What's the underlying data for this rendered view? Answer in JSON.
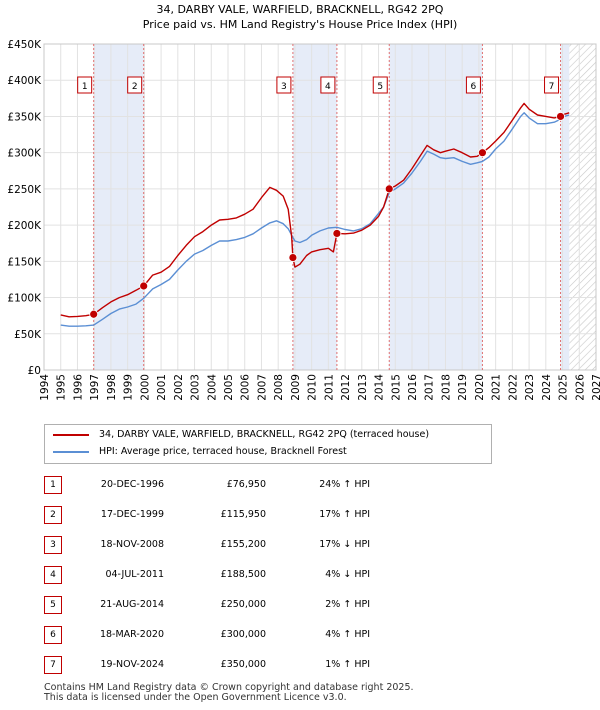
{
  "chart_data": {
    "type": "line",
    "title": "34, DARBY VALE, WARFIELD, BRACKNELL, RG42 2PQ",
    "subtitle": "Price paid vs. HM Land Registry's House Price Index (HPI)",
    "xlim": [
      1994,
      2027
    ],
    "ylim": [
      0,
      450000
    ],
    "x_ticks": [
      "1994",
      "1995",
      "1996",
      "1997",
      "1998",
      "1999",
      "2000",
      "2001",
      "2002",
      "2003",
      "2004",
      "2005",
      "2006",
      "2007",
      "2008",
      "2009",
      "2010",
      "2011",
      "2012",
      "2013",
      "2014",
      "2015",
      "2016",
      "2017",
      "2018",
      "2019",
      "2020",
      "2021",
      "2022",
      "2023",
      "2024",
      "2025",
      "2026",
      "2027"
    ],
    "y_ticks": [
      {
        "value": 0,
        "label": "£0"
      },
      {
        "value": 50000,
        "label": "£50K"
      },
      {
        "value": 100000,
        "label": "£100K"
      },
      {
        "value": 150000,
        "label": "£150K"
      },
      {
        "value": 200000,
        "label": "£200K"
      },
      {
        "value": 250000,
        "label": "£250K"
      },
      {
        "value": 300000,
        "label": "£300K"
      },
      {
        "value": 350000,
        "label": "£350K"
      },
      {
        "value": 400000,
        "label": "£400K"
      },
      {
        "value": 450000,
        "label": "£450K"
      }
    ],
    "grid": true,
    "data_end": 2025.4,
    "shaded_spans": [
      [
        1996.97,
        1999.96
      ],
      [
        2008.88,
        2011.51
      ],
      [
        2014.64,
        2020.21
      ],
      [
        2024.88,
        2025.4
      ]
    ],
    "series": [
      {
        "name": "34, DARBY VALE, WARFIELD, BRACKNELL, RG42 2PQ (terraced house)",
        "color": "#c00000",
        "points": [
          [
            1995.0,
            76000
          ],
          [
            1995.5,
            73500
          ],
          [
            1996.0,
            74000
          ],
          [
            1996.5,
            75000
          ],
          [
            1996.97,
            76950
          ],
          [
            1997.5,
            86000
          ],
          [
            1998.0,
            94000
          ],
          [
            1998.5,
            100000
          ],
          [
            1999.0,
            104000
          ],
          [
            1999.5,
            110000
          ],
          [
            1999.96,
            115950
          ],
          [
            2000.5,
            131000
          ],
          [
            2001.0,
            135000
          ],
          [
            2001.5,
            143000
          ],
          [
            2002.0,
            158000
          ],
          [
            2002.5,
            172000
          ],
          [
            2003.0,
            184000
          ],
          [
            2003.5,
            191000
          ],
          [
            2004.0,
            200000
          ],
          [
            2004.5,
            207000
          ],
          [
            2005.0,
            208000
          ],
          [
            2005.5,
            210000
          ],
          [
            2006.0,
            215000
          ],
          [
            2006.5,
            222000
          ],
          [
            2007.0,
            238000
          ],
          [
            2007.5,
            252000
          ],
          [
            2007.9,
            248000
          ],
          [
            2008.3,
            240000
          ],
          [
            2008.6,
            222000
          ],
          [
            2008.8,
            185000
          ],
          [
            2008.88,
            155200
          ],
          [
            2009.0,
            142000
          ],
          [
            2009.3,
            146000
          ],
          [
            2009.7,
            158000
          ],
          [
            2010.0,
            163000
          ],
          [
            2010.5,
            166000
          ],
          [
            2011.0,
            168000
          ],
          [
            2011.3,
            163000
          ],
          [
            2011.51,
            188500
          ],
          [
            2012.0,
            188000
          ],
          [
            2012.5,
            189000
          ],
          [
            2013.0,
            193000
          ],
          [
            2013.5,
            200000
          ],
          [
            2014.0,
            212000
          ],
          [
            2014.3,
            225000
          ],
          [
            2014.64,
            250000
          ],
          [
            2015.0,
            254000
          ],
          [
            2015.5,
            262000
          ],
          [
            2016.0,
            278000
          ],
          [
            2016.5,
            296000
          ],
          [
            2016.9,
            310000
          ],
          [
            2017.3,
            304000
          ],
          [
            2017.7,
            300000
          ],
          [
            2018.0,
            302000
          ],
          [
            2018.5,
            305000
          ],
          [
            2019.0,
            300000
          ],
          [
            2019.5,
            294000
          ],
          [
            2019.9,
            295000
          ],
          [
            2020.21,
            300000
          ],
          [
            2020.6,
            307000
          ],
          [
            2021.0,
            316000
          ],
          [
            2021.5,
            328000
          ],
          [
            2022.0,
            345000
          ],
          [
            2022.5,
            362000
          ],
          [
            2022.7,
            368000
          ],
          [
            2023.0,
            360000
          ],
          [
            2023.5,
            352000
          ],
          [
            2024.0,
            350000
          ],
          [
            2024.5,
            348000
          ],
          [
            2024.88,
            350000
          ],
          [
            2025.1,
            353000
          ],
          [
            2025.4,
            355000
          ]
        ]
      },
      {
        "name": "HPI: Average price, terraced house, Bracknell Forest",
        "color": "#5b8fd4",
        "points": [
          [
            1995.0,
            62000
          ],
          [
            1995.5,
            60500
          ],
          [
            1996.0,
            60500
          ],
          [
            1996.5,
            61000
          ],
          [
            1996.97,
            62000
          ],
          [
            1997.5,
            70000
          ],
          [
            1998.0,
            78000
          ],
          [
            1998.5,
            84000
          ],
          [
            1999.0,
            87000
          ],
          [
            1999.5,
            91000
          ],
          [
            1999.96,
            99000
          ],
          [
            2000.5,
            112000
          ],
          [
            2001.0,
            118000
          ],
          [
            2001.5,
            125000
          ],
          [
            2002.0,
            138000
          ],
          [
            2002.5,
            150000
          ],
          [
            2003.0,
            160000
          ],
          [
            2003.5,
            165000
          ],
          [
            2004.0,
            172000
          ],
          [
            2004.5,
            178000
          ],
          [
            2005.0,
            178000
          ],
          [
            2005.5,
            180000
          ],
          [
            2006.0,
            183000
          ],
          [
            2006.5,
            188000
          ],
          [
            2007.0,
            196000
          ],
          [
            2007.5,
            203000
          ],
          [
            2007.9,
            206000
          ],
          [
            2008.3,
            202000
          ],
          [
            2008.6,
            195000
          ],
          [
            2008.88,
            183000
          ],
          [
            2009.0,
            178000
          ],
          [
            2009.3,
            176000
          ],
          [
            2009.7,
            180000
          ],
          [
            2010.0,
            186000
          ],
          [
            2010.5,
            192000
          ],
          [
            2011.0,
            196000
          ],
          [
            2011.51,
            197000
          ],
          [
            2012.0,
            194000
          ],
          [
            2012.5,
            192000
          ],
          [
            2013.0,
            195000
          ],
          [
            2013.5,
            202000
          ],
          [
            2014.0,
            216000
          ],
          [
            2014.3,
            225000
          ],
          [
            2014.64,
            245000
          ],
          [
            2015.0,
            250000
          ],
          [
            2015.5,
            258000
          ],
          [
            2016.0,
            272000
          ],
          [
            2016.5,
            288000
          ],
          [
            2016.9,
            302000
          ],
          [
            2017.3,
            298000
          ],
          [
            2017.7,
            293000
          ],
          [
            2018.0,
            292000
          ],
          [
            2018.5,
            293000
          ],
          [
            2019.0,
            288000
          ],
          [
            2019.5,
            284000
          ],
          [
            2019.9,
            286000
          ],
          [
            2020.21,
            288000
          ],
          [
            2020.6,
            294000
          ],
          [
            2021.0,
            305000
          ],
          [
            2021.5,
            316000
          ],
          [
            2022.0,
            333000
          ],
          [
            2022.5,
            350000
          ],
          [
            2022.7,
            355000
          ],
          [
            2023.0,
            348000
          ],
          [
            2023.5,
            340000
          ],
          [
            2024.0,
            340000
          ],
          [
            2024.5,
            342000
          ],
          [
            2024.88,
            346000
          ],
          [
            2025.1,
            350000
          ],
          [
            2025.4,
            352000
          ]
        ]
      }
    ],
    "transactions": [
      {
        "num": "1",
        "date": "20-DEC-1996",
        "x": 1996.97,
        "price": "£76,950",
        "value": 76950,
        "hpi": "24% ↑ HPI"
      },
      {
        "num": "2",
        "date": "17-DEC-1999",
        "x": 1999.96,
        "price": "£115,950",
        "value": 115950,
        "hpi": "17% ↑ HPI"
      },
      {
        "num": "3",
        "date": "18-NOV-2008",
        "x": 2008.88,
        "price": "£155,200",
        "value": 155200,
        "hpi": "17% ↓ HPI"
      },
      {
        "num": "4",
        "date": "04-JUL-2011",
        "x": 2011.51,
        "price": "£188,500",
        "value": 188500,
        "hpi": "4% ↓ HPI"
      },
      {
        "num": "5",
        "date": "21-AUG-2014",
        "x": 2014.64,
        "price": "£250,000",
        "value": 250000,
        "hpi": "2% ↑ HPI"
      },
      {
        "num": "6",
        "date": "18-MAR-2020",
        "x": 2020.21,
        "price": "£300,000",
        "value": 300000,
        "hpi": "4% ↑ HPI"
      },
      {
        "num": "7",
        "date": "19-NOV-2024",
        "x": 2024.88,
        "price": "£350,000",
        "value": 350000,
        "hpi": "1% ↑ HPI"
      }
    ]
  },
  "legend": {
    "property_label": "34, DARBY VALE, WARFIELD, BRACKNELL, RG42 2PQ (terraced house)",
    "hpi_label": "HPI: Average price, terraced house, Bracknell Forest",
    "property_color": "#c00000",
    "hpi_color": "#5b8fd4"
  },
  "footer": {
    "line1": "Contains HM Land Registry data © Crown copyright and database right 2025.",
    "line2": "This data is licensed under the Open Government Licence v3.0."
  }
}
